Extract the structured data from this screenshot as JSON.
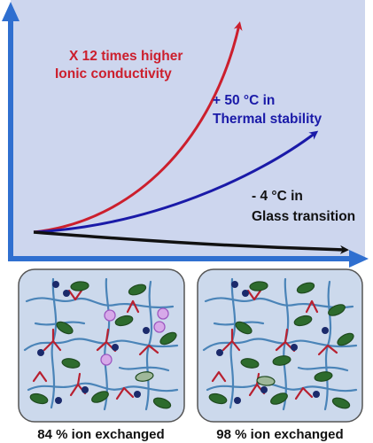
{
  "graph": {
    "arrows": [
      {
        "name": "ionic-conductivity-arrow",
        "color": "#cc1f2d",
        "line1": "X 12 times higher",
        "line2": "Ionic conductivity"
      },
      {
        "name": "thermal-stability-arrow",
        "color": "#1a1aa8",
        "line1": "+ 50 °C in",
        "line2": "Thermal stability"
      },
      {
        "name": "glass-transition-arrow",
        "color": "#111111",
        "line1": "- 4 °C in",
        "line2": "Glass transition"
      }
    ],
    "axis_color": "#2f6fd0",
    "background": "#cdd6ee"
  },
  "panels": [
    {
      "caption": "84 % ion exchanged"
    },
    {
      "caption": "98 % ion exchanged"
    }
  ],
  "colors": {
    "panel_bg": "#ccd9ec",
    "chain_blue": "#4a84b8",
    "crosslink_red": "#b82030",
    "cation_fill": "#2d6b2d",
    "cation_light": "#9fb89a",
    "anion_fill": "#d7a9e9",
    "anion_stroke": "#9d58c0",
    "fixed_charge": "#1b2a6b"
  }
}
